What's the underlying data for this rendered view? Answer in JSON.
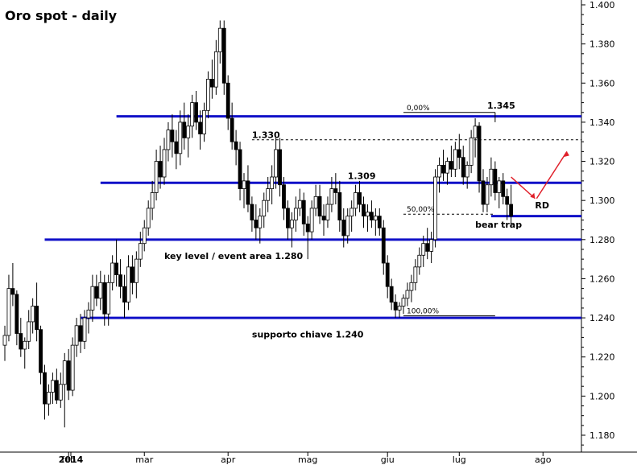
{
  "chart_data": {
    "type": "candlestick",
    "title": "Oro spot - daily",
    "ylim": [
      1.175,
      1.4
    ],
    "y_ticks": [
      "1.180",
      "1.200",
      "1.220",
      "1.240",
      "1.260",
      "1.280",
      "1.300",
      "1.320",
      "1.340",
      "1.360",
      "1.380",
      "1.400"
    ],
    "x_ticks": [
      "2014",
      "feb",
      "mar",
      "apr",
      "mag",
      "giu",
      "lug",
      "ago"
    ],
    "grid": false,
    "colors": {
      "bull": "#ffffff",
      "bear": "#000000",
      "wick": "#000000",
      "level": "#1010c8",
      "arrow": "#e0202a"
    },
    "ohlc": [
      [
        1.226,
        1.236,
        1.218,
        1.231
      ],
      [
        1.231,
        1.262,
        1.228,
        1.255
      ],
      [
        1.255,
        1.268,
        1.246,
        1.252
      ],
      [
        1.252,
        1.254,
        1.226,
        1.232
      ],
      [
        1.232,
        1.24,
        1.22,
        1.224
      ],
      [
        1.224,
        1.23,
        1.214,
        1.228
      ],
      [
        1.228,
        1.244,
        1.224,
        1.238
      ],
      [
        1.238,
        1.25,
        1.232,
        1.246
      ],
      [
        1.246,
        1.258,
        1.228,
        1.234
      ],
      [
        1.234,
        1.236,
        1.206,
        1.212
      ],
      [
        1.212,
        1.216,
        1.188,
        1.196
      ],
      [
        1.196,
        1.206,
        1.19,
        1.202
      ],
      [
        1.202,
        1.212,
        1.196,
        1.208
      ],
      [
        1.208,
        1.214,
        1.196,
        1.198
      ],
      [
        1.198,
        1.212,
        1.194,
        1.206
      ],
      [
        1.206,
        1.222,
        1.184,
        1.218
      ],
      [
        1.218,
        1.224,
        1.198,
        1.203
      ],
      [
        1.203,
        1.23,
        1.2,
        1.226
      ],
      [
        1.226,
        1.24,
        1.22,
        1.236
      ],
      [
        1.236,
        1.242,
        1.222,
        1.228
      ],
      [
        1.228,
        1.244,
        1.224,
        1.24
      ],
      [
        1.24,
        1.248,
        1.232,
        1.244
      ],
      [
        1.244,
        1.262,
        1.238,
        1.256
      ],
      [
        1.256,
        1.262,
        1.246,
        1.25
      ],
      [
        1.25,
        1.264,
        1.244,
        1.258
      ],
      [
        1.258,
        1.262,
        1.236,
        1.242
      ],
      [
        1.242,
        1.262,
        1.236,
        1.258
      ],
      [
        1.258,
        1.272,
        1.254,
        1.268
      ],
      [
        1.268,
        1.28,
        1.256,
        1.262
      ],
      [
        1.262,
        1.27,
        1.25,
        1.256
      ],
      [
        1.256,
        1.262,
        1.24,
        1.248
      ],
      [
        1.248,
        1.272,
        1.244,
        1.266
      ],
      [
        1.266,
        1.272,
        1.252,
        1.258
      ],
      [
        1.258,
        1.274,
        1.25,
        1.27
      ],
      [
        1.27,
        1.284,
        1.266,
        1.278
      ],
      [
        1.278,
        1.29,
        1.274,
        1.286
      ],
      [
        1.286,
        1.3,
        1.282,
        1.296
      ],
      [
        1.296,
        1.31,
        1.29,
        1.304
      ],
      [
        1.304,
        1.326,
        1.3,
        1.32
      ],
      [
        1.32,
        1.328,
        1.306,
        1.312
      ],
      [
        1.312,
        1.332,
        1.308,
        1.326
      ],
      [
        1.326,
        1.34,
        1.32,
        1.336
      ],
      [
        1.336,
        1.344,
        1.322,
        1.33
      ],
      [
        1.33,
        1.336,
        1.316,
        1.324
      ],
      [
        1.324,
        1.346,
        1.318,
        1.34
      ],
      [
        1.34,
        1.35,
        1.326,
        1.332
      ],
      [
        1.332,
        1.344,
        1.322,
        1.338
      ],
      [
        1.338,
        1.354,
        1.332,
        1.35
      ],
      [
        1.35,
        1.356,
        1.336,
        1.34
      ],
      [
        1.34,
        1.346,
        1.326,
        1.334
      ],
      [
        1.334,
        1.35,
        1.33,
        1.346
      ],
      [
        1.346,
        1.366,
        1.342,
        1.362
      ],
      [
        1.362,
        1.372,
        1.352,
        1.358
      ],
      [
        1.358,
        1.382,
        1.354,
        1.376
      ],
      [
        1.376,
        1.392,
        1.37,
        1.388
      ],
      [
        1.388,
        1.392,
        1.354,
        1.36
      ],
      [
        1.36,
        1.364,
        1.336,
        1.342
      ],
      [
        1.342,
        1.35,
        1.326,
        1.33
      ],
      [
        1.33,
        1.336,
        1.318,
        1.326
      ],
      [
        1.326,
        1.33,
        1.3,
        1.306
      ],
      [
        1.306,
        1.314,
        1.296,
        1.31
      ],
      [
        1.31,
        1.318,
        1.294,
        1.298
      ],
      [
        1.298,
        1.302,
        1.284,
        1.29
      ],
      [
        1.29,
        1.298,
        1.28,
        1.286
      ],
      [
        1.286,
        1.296,
        1.278,
        1.292
      ],
      [
        1.292,
        1.304,
        1.286,
        1.3
      ],
      [
        1.3,
        1.312,
        1.294,
        1.306
      ],
      [
        1.306,
        1.318,
        1.298,
        1.312
      ],
      [
        1.312,
        1.332,
        1.306,
        1.326
      ],
      [
        1.326,
        1.332,
        1.302,
        1.308
      ],
      [
        1.308,
        1.312,
        1.29,
        1.296
      ],
      [
        1.296,
        1.3,
        1.28,
        1.286
      ],
      [
        1.286,
        1.294,
        1.276,
        1.29
      ],
      [
        1.29,
        1.302,
        1.284,
        1.296
      ],
      [
        1.296,
        1.306,
        1.292,
        1.3
      ],
      [
        1.3,
        1.304,
        1.282,
        1.288
      ],
      [
        1.288,
        1.292,
        1.27,
        1.284
      ],
      [
        1.284,
        1.3,
        1.28,
        1.296
      ],
      [
        1.296,
        1.308,
        1.292,
        1.302
      ],
      [
        1.302,
        1.308,
        1.288,
        1.292
      ],
      [
        1.292,
        1.298,
        1.282,
        1.29
      ],
      [
        1.29,
        1.302,
        1.286,
        1.298
      ],
      [
        1.298,
        1.312,
        1.294,
        1.306
      ],
      [
        1.306,
        1.314,
        1.298,
        1.304
      ],
      [
        1.304,
        1.31,
        1.284,
        1.29
      ],
      [
        1.29,
        1.296,
        1.276,
        1.282
      ],
      [
        1.282,
        1.296,
        1.278,
        1.292
      ],
      [
        1.292,
        1.3,
        1.284,
        1.296
      ],
      [
        1.296,
        1.308,
        1.292,
        1.304
      ],
      [
        1.304,
        1.31,
        1.294,
        1.298
      ],
      [
        1.298,
        1.302,
        1.286,
        1.292
      ],
      [
        1.292,
        1.298,
        1.284,
        1.294
      ],
      [
        1.294,
        1.3,
        1.286,
        1.29
      ],
      [
        1.29,
        1.296,
        1.282,
        1.292
      ],
      [
        1.292,
        1.296,
        1.282,
        1.286
      ],
      [
        1.286,
        1.29,
        1.262,
        1.268
      ],
      [
        1.268,
        1.272,
        1.25,
        1.256
      ],
      [
        1.256,
        1.26,
        1.244,
        1.248
      ],
      [
        1.248,
        1.252,
        1.24,
        1.244
      ],
      [
        1.244,
        1.248,
        1.24,
        1.246
      ],
      [
        1.246,
        1.252,
        1.242,
        1.25
      ],
      [
        1.25,
        1.258,
        1.246,
        1.254
      ],
      [
        1.254,
        1.262,
        1.248,
        1.258
      ],
      [
        1.258,
        1.27,
        1.254,
        1.266
      ],
      [
        1.266,
        1.276,
        1.262,
        1.272
      ],
      [
        1.272,
        1.282,
        1.266,
        1.278
      ],
      [
        1.278,
        1.286,
        1.27,
        1.274
      ],
      [
        1.274,
        1.284,
        1.268,
        1.28
      ],
      [
        1.28,
        1.316,
        1.276,
        1.312
      ],
      [
        1.312,
        1.322,
        1.304,
        1.318
      ],
      [
        1.318,
        1.326,
        1.31,
        1.314
      ],
      [
        1.314,
        1.322,
        1.308,
        1.32
      ],
      [
        1.32,
        1.328,
        1.312,
        1.316
      ],
      [
        1.316,
        1.33,
        1.312,
        1.326
      ],
      [
        1.326,
        1.334,
        1.316,
        1.322
      ],
      [
        1.322,
        1.328,
        1.308,
        1.312
      ],
      [
        1.312,
        1.32,
        1.306,
        1.318
      ],
      [
        1.318,
        1.336,
        1.314,
        1.332
      ],
      [
        1.332,
        1.342,
        1.322,
        1.338
      ],
      [
        1.338,
        1.34,
        1.304,
        1.31
      ],
      [
        1.31,
        1.316,
        1.294,
        1.298
      ],
      [
        1.298,
        1.312,
        1.294,
        1.308
      ],
      [
        1.308,
        1.322,
        1.302,
        1.316
      ],
      [
        1.316,
        1.32,
        1.3,
        1.304
      ],
      [
        1.304,
        1.312,
        1.296,
        1.31
      ],
      [
        1.31,
        1.314,
        1.298,
        1.302
      ],
      [
        1.302,
        1.306,
        1.29,
        1.298
      ],
      [
        1.298,
        1.308,
        1.286,
        1.292
      ]
    ],
    "x_tick_index": [
      0,
      16,
      35,
      56,
      76,
      96,
      114,
      135
    ],
    "levels": [
      {
        "price": 1.343,
        "start_index": 28
      },
      {
        "price": 1.309,
        "start_index": 24
      },
      {
        "price": 1.292,
        "start_index": 122
      },
      {
        "price": 1.28,
        "start_index": 10
      },
      {
        "price": 1.24,
        "start_index": 19
      }
    ],
    "fib": [
      {
        "label": "0,00%",
        "price": 1.345,
        "start_index": 100,
        "end_index": 123
      },
      {
        "label": "50,00%",
        "price": 1.293,
        "start_index": 100,
        "end_index": 123
      },
      {
        "label": "100,00%",
        "price": 1.241,
        "start_index": 100,
        "end_index": 123
      }
    ],
    "dashed_1330": {
      "price": 1.331,
      "start_index": 62,
      "end_index": 160
    },
    "annotations": [
      {
        "text": "1.345",
        "price": 1.347,
        "index": 121
      },
      {
        "text": "1.330",
        "price": 1.332,
        "index": 62
      },
      {
        "text": "1.309",
        "price": 1.311,
        "index": 86
      },
      {
        "text": "key level / event area 1.280",
        "price": 1.27,
        "index": 40
      },
      {
        "text": "supporto chiave 1.240",
        "price": 1.23,
        "index": 62
      },
      {
        "text": "bear trap",
        "price": 1.286,
        "index": 118
      },
      {
        "text": "RD",
        "price": 1.296,
        "index": 133
      }
    ]
  }
}
